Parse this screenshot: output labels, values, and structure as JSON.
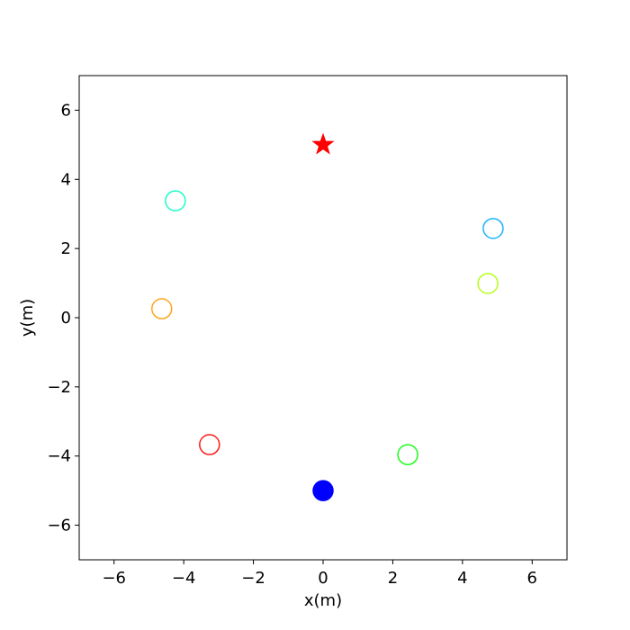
{
  "chart_data": {
    "type": "scatter",
    "xlabel": "x(m)",
    "ylabel": "y(m)",
    "xlim": [
      -7,
      7
    ],
    "ylim": [
      -7,
      7
    ],
    "xticks": [
      {
        "value": -6,
        "label": "−6"
      },
      {
        "value": -4,
        "label": "−4"
      },
      {
        "value": -2,
        "label": "−2"
      },
      0,
      2,
      4,
      6
    ],
    "yticks": [
      {
        "value": -6,
        "label": "−6"
      },
      {
        "value": -4,
        "label": "−4"
      },
      {
        "value": -2,
        "label": "−2"
      },
      0,
      2,
      4,
      6
    ],
    "points": [
      {
        "x": 0,
        "y": 5,
        "color": "#ff0000",
        "marker": "star",
        "filled": true
      },
      {
        "x": -4.24,
        "y": 3.38,
        "color": "#1affc8",
        "marker": "circle",
        "filled": false
      },
      {
        "x": 4.88,
        "y": 2.58,
        "color": "#1ab4ff",
        "marker": "circle",
        "filled": false
      },
      {
        "x": 4.73,
        "y": 0.99,
        "color": "#b4ff1a",
        "marker": "circle",
        "filled": false
      },
      {
        "x": -4.63,
        "y": 0.26,
        "color": "#ffa51a",
        "marker": "circle",
        "filled": false
      },
      {
        "x": -3.26,
        "y": -3.67,
        "color": "#ff1a1a",
        "marker": "circle",
        "filled": false
      },
      {
        "x": 2.43,
        "y": -3.96,
        "color": "#1aff1a",
        "marker": "circle",
        "filled": false
      },
      {
        "x": 0,
        "y": -5,
        "color": "#0000ff",
        "marker": "circle",
        "filled": true
      }
    ]
  }
}
